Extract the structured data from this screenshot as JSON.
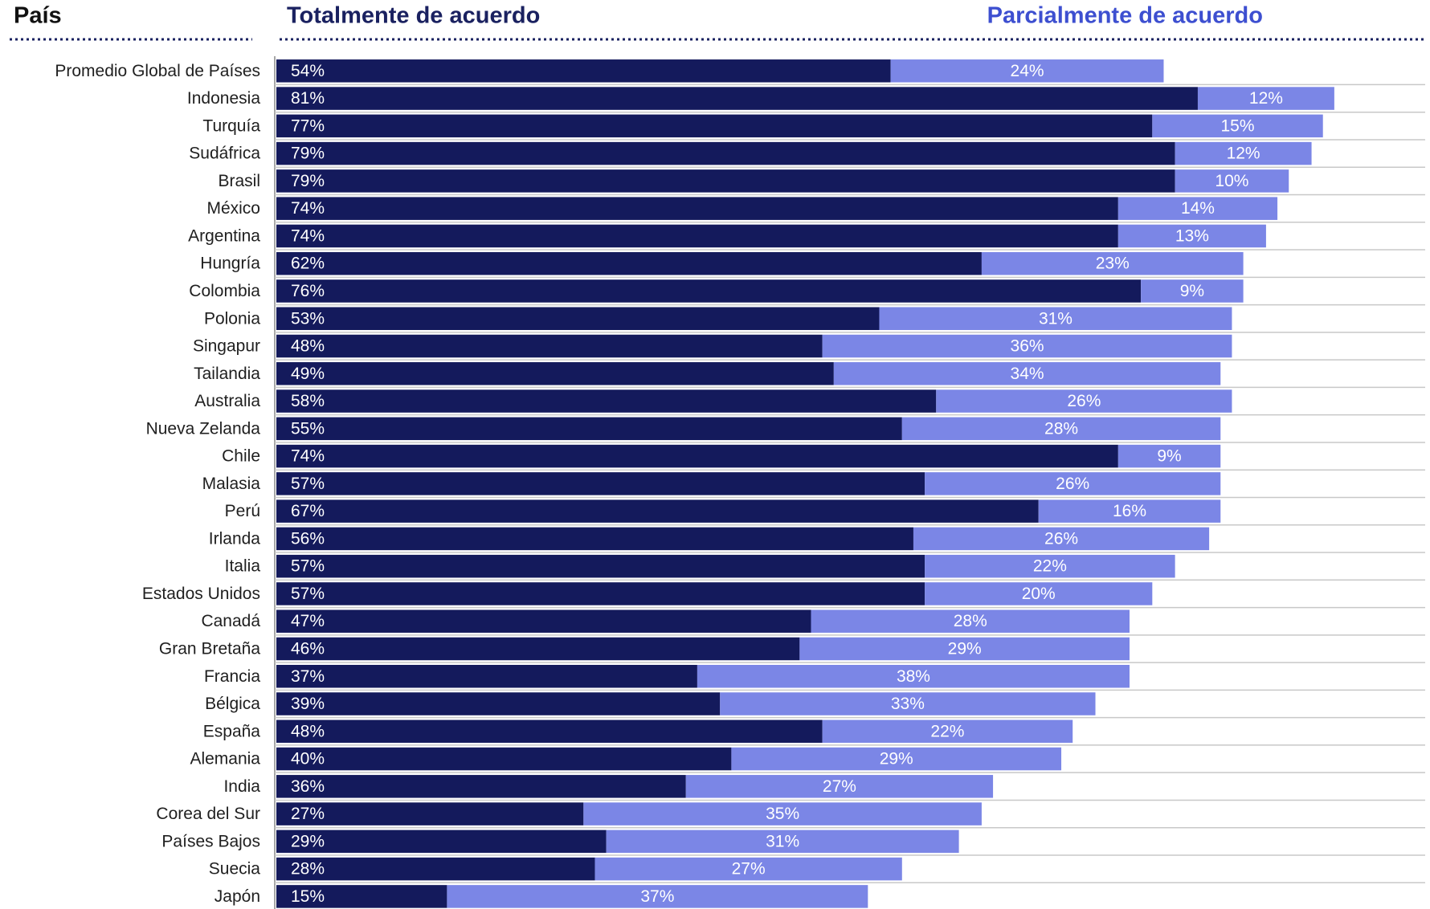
{
  "chart_data": {
    "type": "stacked-bar-horizontal",
    "y_label": "País",
    "categories": [
      "Promedio Global de Países",
      "Indonesia",
      "Turquía",
      "Sudáfrica",
      "Brasil",
      "México",
      "Argentina",
      "Hungría",
      "Colombia",
      "Polonia",
      "Singapur",
      "Tailandia",
      "Australia",
      "Nueva Zelanda",
      "Chile",
      "Malasia",
      "Perú",
      "Irlanda",
      "Italia",
      "Estados Unidos",
      "Canadá",
      "Gran Bretaña",
      "Francia",
      "Bélgica",
      "España",
      "Alemania",
      "India",
      "Corea del Sur",
      "Países Bajos",
      "Suecia",
      "Japón"
    ],
    "series": [
      {
        "name": "Totalmente de acuerdo",
        "color": "#141a5c",
        "values": [
          54,
          81,
          77,
          79,
          79,
          74,
          74,
          62,
          76,
          53,
          48,
          49,
          58,
          55,
          74,
          57,
          67,
          56,
          57,
          57,
          47,
          46,
          37,
          39,
          48,
          40,
          36,
          27,
          29,
          28,
          15
        ],
        "value_labels": [
          "54%",
          "81%",
          "77%",
          "79%",
          "79%",
          "74%",
          "74%",
          "62%",
          "76%",
          "53%",
          "48%",
          "49%",
          "58%",
          "55%",
          "74%",
          "57%",
          "67%",
          "56%",
          "57%",
          "57%",
          "47%",
          "46%",
          "37%",
          "39%",
          "48%",
          "40%",
          "36%",
          "27%",
          "29%",
          "28%",
          "15%"
        ]
      },
      {
        "name": "Parcialmente de acuerdo",
        "color": "#7b86e6",
        "values": [
          24,
          12,
          15,
          12,
          10,
          14,
          13,
          23,
          9,
          31,
          36,
          34,
          26,
          28,
          9,
          26,
          16,
          26,
          22,
          20,
          28,
          29,
          38,
          33,
          22,
          29,
          27,
          35,
          31,
          27,
          37
        ],
        "value_labels": [
          "24%",
          "12%",
          "15%",
          "12%",
          "10%",
          "14%",
          "13%",
          "23%",
          "9%",
          "31%",
          "36%",
          "34%",
          "26%",
          "28%",
          "9%",
          "26%",
          "16%",
          "26%",
          "22%",
          "20%",
          "28%",
          "29%",
          "38%",
          "33%",
          "22%",
          "29%",
          "27%",
          "35%",
          "31%",
          "27%",
          "37%"
        ]
      }
    ]
  }
}
